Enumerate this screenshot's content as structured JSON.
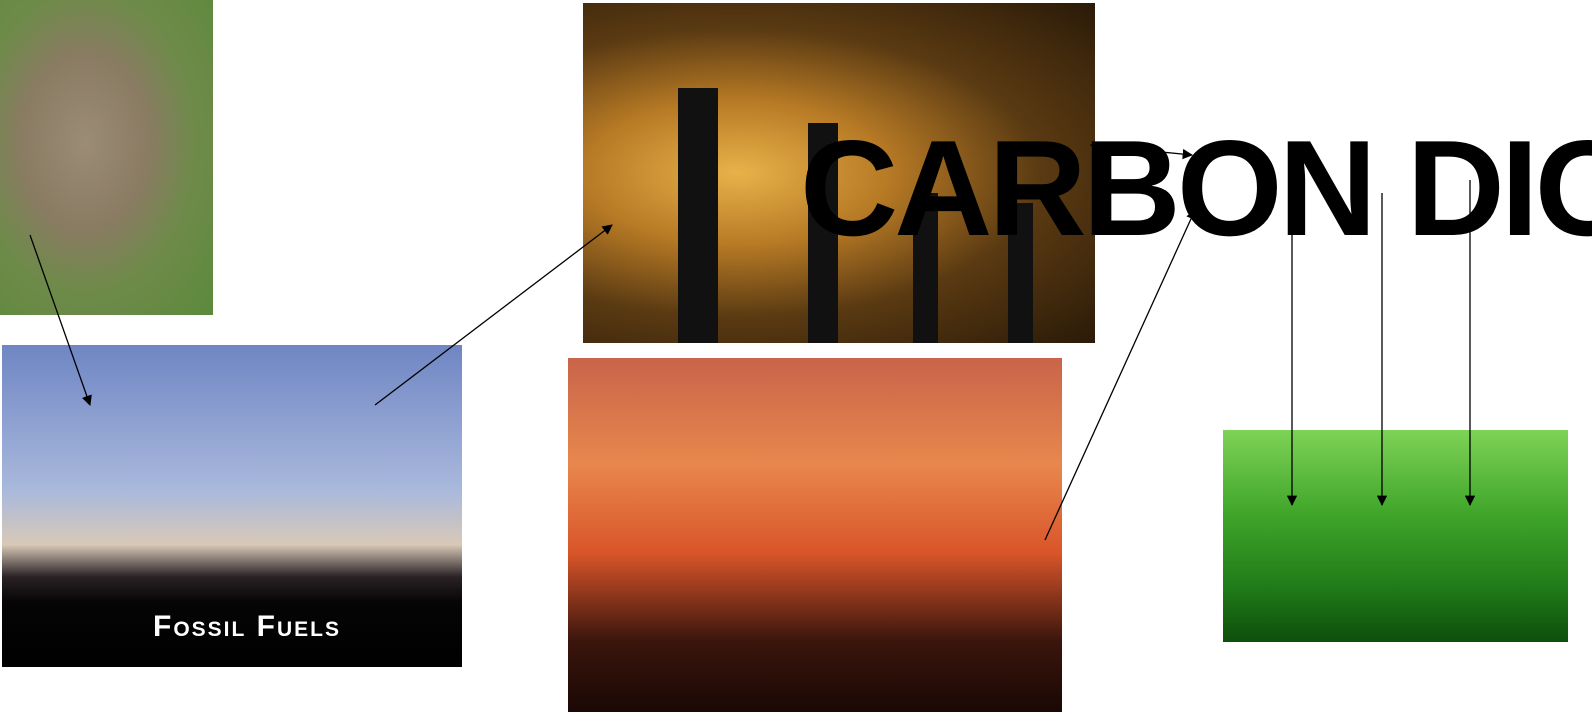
{
  "labels": {
    "fossil_fuels": "Fossil Fuels",
    "carbon": "CARBON DIO"
  }
}
